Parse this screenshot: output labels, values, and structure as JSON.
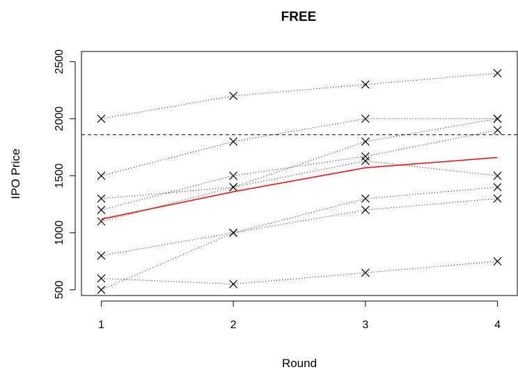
{
  "chart_data": {
    "type": "line",
    "title": "FREE",
    "xlabel": "Round",
    "ylabel": "IPO Price",
    "x": [
      1,
      2,
      3,
      4
    ],
    "x_ticks": [
      "1",
      "2",
      "3",
      "4"
    ],
    "y_ticks": [
      "500",
      "1000",
      "1500",
      "2000",
      "2500"
    ],
    "xlim": [
      0.85,
      4.15
    ],
    "ylim": [
      450,
      2590
    ],
    "grid": false,
    "series": [
      {
        "values": [
          2000,
          2200,
          2300,
          2400
        ],
        "style": "dotted",
        "marker": "x",
        "color": "#000000"
      },
      {
        "values": [
          1500,
          1800,
          2000,
          2000
        ],
        "style": "dotted",
        "marker": "x",
        "color": "#000000"
      },
      {
        "values": [
          1300,
          1400,
          1800,
          2000
        ],
        "style": "dotted",
        "marker": "x",
        "color": "#000000"
      },
      {
        "values": [
          1200,
          1500,
          1670,
          1900
        ],
        "style": "dotted",
        "marker": "x",
        "color": "#000000"
      },
      {
        "values": [
          1100,
          1400,
          1630,
          1500
        ],
        "style": "dotted",
        "marker": "x",
        "color": "#000000"
      },
      {
        "values": [
          800,
          1000,
          1300,
          1400
        ],
        "style": "dotted",
        "marker": "x",
        "color": "#000000"
      },
      {
        "values": [
          500,
          1000,
          1200,
          1300
        ],
        "style": "dotted",
        "marker": "x",
        "color": "#000000"
      },
      {
        "values": [
          600,
          550,
          650,
          750
        ],
        "style": "dotted",
        "marker": "x",
        "color": "#000000"
      },
      {
        "values": [
          1120,
          1360,
          1570,
          1660
        ],
        "style": "solid",
        "marker": "none",
        "color": "#ff0000"
      }
    ],
    "hline": {
      "y": 1860,
      "style": "dashed",
      "color": "#000000"
    }
  }
}
